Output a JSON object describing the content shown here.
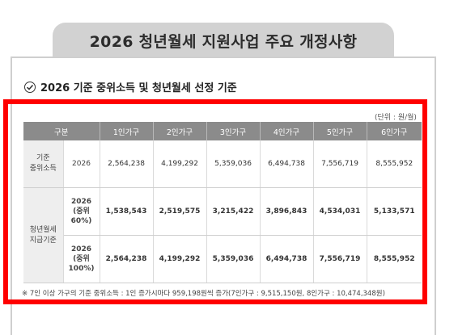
{
  "title": "2026 청년월세 지원사업 주요 개정사항",
  "section_title": "2026 기준 중위소득 및 청년월세 선정 기준",
  "unit": "(단위 : 원/월)",
  "headers": [
    "구분",
    "1인가구",
    "2인가구",
    "3인가구",
    "4인가구",
    "5인가구",
    "6인가구"
  ],
  "rows": {
    "median": {
      "label": "기준\n중위소득",
      "year": "2026",
      "values": [
        "2,564,238",
        "4,199,292",
        "5,359,036",
        "6,494,738",
        "7,556,719",
        "8,555,952"
      ]
    },
    "rent_criteria": {
      "label": "청년월세\n지급기준",
      "sub": [
        {
          "year": "2026\n(중위\n60%)",
          "values": [
            "1,538,543",
            "2,519,575",
            "3,215,422",
            "3,896,843",
            "4,534,031",
            "5,133,571"
          ]
        },
        {
          "year": "2026\n(중위\n100%)",
          "values": [
            "2,564,238",
            "4,199,292",
            "5,359,036",
            "6,494,738",
            "7,556,719",
            "8,555,952"
          ]
        }
      ]
    }
  },
  "footnote": "※ 7인 이상 가구의 기준 중위소득 : 1인 증가시마다 959,198원씩 증가(7인가구 : 9,515,150원, 8인가구 : 10,474,348원)"
}
